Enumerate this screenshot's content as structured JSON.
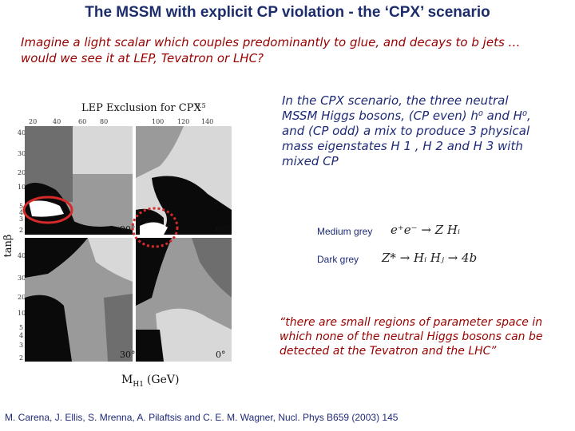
{
  "header": {
    "title": "The MSSM with explicit CP violation - the ‘CPX’ scenario"
  },
  "intro": {
    "line1": "Imagine a light scalar which couples predominantly to glue, and decays to b jets …",
    "line2": "would we see it at LEP, Tevatron or LHC?"
  },
  "figure": {
    "title": "LEP Exclusion for CPX",
    "title_subscript": "0.5",
    "xlabel_main": "M",
    "xlabel_sub": "H1",
    "xlabel_unit": "(GeV)",
    "ylabel": "tanβ",
    "x_ticks": [
      "20",
      "40",
      "60",
      "80",
      "100",
      "120",
      "140"
    ],
    "y_ticks_upper": [
      "40",
      "30",
      "20",
      "10",
      "5",
      "4",
      "3",
      "2"
    ],
    "y_ticks_lower": [
      "40",
      "30",
      "20",
      "10",
      "5",
      "4",
      "3",
      "2"
    ],
    "phase_labels": [
      "90°",
      "60°",
      "30°",
      "0°"
    ],
    "colors": {
      "black": "#0a0a0a",
      "dark_grey": "#6e6e6e",
      "medium_grey": "#9a9a9a",
      "light_grey": "#d8d8d8",
      "highlight": "#d62a2a"
    }
  },
  "cpx_text": {
    "line1": "In the CPX scenario, the three neutral",
    "line2": "MSSM Higgs bosons, (CP even) h⁰ and H⁰,",
    "line3": "and (CP odd) a mix to produce 3 physical",
    "line4": "mass eigenstates H 1 , H 2 and H 3 with",
    "line5": "mixed CP"
  },
  "legend": {
    "medium_label": "Medium grey",
    "medium_formula": "e⁺e⁻ → Z Hᵢ",
    "dark_label": "Dark grey",
    "dark_formula": "Z* → Hᵢ Hⱼ → 4b"
  },
  "quote": {
    "line1": "“there are small regions of parameter space in",
    "line2": "which none of the neutral Higgs bosons can be",
    "line3": "detected at the Tevatron and the LHC”"
  },
  "citation": "M. Carena, J. Ellis, S. Mrenna, A. Pilaftsis and C. E. M. Wagner, Nucl. Phys B659 (2003) 145"
}
